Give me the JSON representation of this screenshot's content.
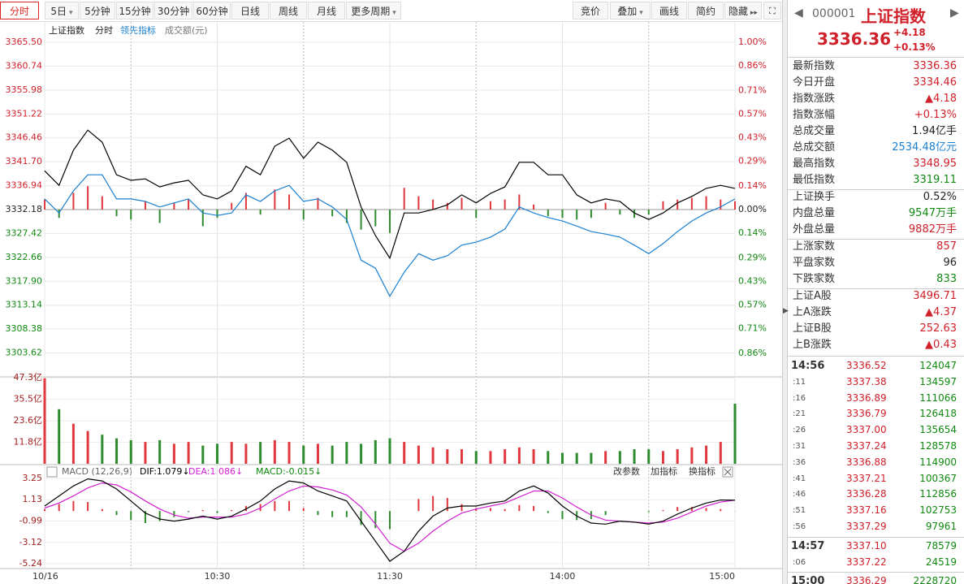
{
  "toolbar": {
    "left": [
      "分时",
      "5日",
      "5分钟",
      "15分钟",
      "30分钟",
      "60分钟",
      "日线",
      "周线",
      "月线",
      "更多周期"
    ],
    "right": [
      "竞价",
      "叠加",
      "画线",
      "简约",
      "隐藏"
    ]
  },
  "chart_data": [
    {
      "type": "line",
      "title": "上证指数",
      "subtitle": "分时",
      "volume_label": "成交额(元)",
      "x": [
        0,
        5,
        10,
        15,
        20,
        25,
        30,
        35,
        40,
        45,
        50,
        55,
        60,
        65,
        70,
        75,
        80,
        85,
        90,
        95,
        100,
        105,
        110,
        115,
        120,
        125,
        130,
        135,
        140,
        145,
        150,
        155,
        160,
        165,
        170,
        175,
        180,
        185,
        190,
        195,
        200,
        205,
        210,
        215,
        220,
        225,
        230,
        235,
        240
      ],
      "xlim": [
        0,
        240
      ],
      "xticks": [
        {
          "value": 0,
          "label": "10/16"
        },
        {
          "value": 60,
          "label": "10:30"
        },
        {
          "value": 120,
          "label": "11:30"
        },
        {
          "value": 180,
          "label": "14:00"
        },
        {
          "value": 240,
          "label": "15:00"
        }
      ],
      "xgrid": [
        30,
        90,
        150,
        210
      ],
      "series": [
        {
          "name": "上证指数",
          "color": "#000000",
          "values": [
            3339.9,
            3337.0,
            3344.0,
            3348.0,
            3345.6,
            3339.1,
            3338.0,
            3338.3,
            3336.7,
            3337.5,
            3338.0,
            3335.1,
            3334.3,
            3335.9,
            3340.8,
            3339.1,
            3344.8,
            3346.4,
            3342.4,
            3345.6,
            3344.0,
            3341.6,
            3332.7,
            3327.0,
            3322.5,
            3331.5,
            3331.5,
            3332.2,
            3333.1,
            3335.1,
            3333.5,
            3335.4,
            3336.7,
            3341.6,
            3341.6,
            3339.1,
            3339.1,
            3335.1,
            3333.5,
            3334.3,
            3333.8,
            3331.5,
            3330.2,
            3331.5,
            3333.5,
            3334.8,
            3336.4,
            3337.0,
            3336.4
          ]
        },
        {
          "name": "领先指标",
          "color": "#1a7fd0",
          "values": [
            3334.3,
            3331.5,
            3335.9,
            3339.1,
            3339.1,
            3334.3,
            3334.3,
            3333.8,
            3332.7,
            3333.5,
            3334.3,
            3331.5,
            3331.0,
            3331.5,
            3335.1,
            3333.8,
            3335.9,
            3337.0,
            3333.8,
            3334.3,
            3332.7,
            3330.2,
            3322.1,
            3320.5,
            3314.9,
            3319.7,
            3323.4,
            3322.1,
            3323.0,
            3325.1,
            3325.7,
            3326.7,
            3328.3,
            3332.7,
            3331.5,
            3330.6,
            3329.9,
            3328.9,
            3327.8,
            3327.3,
            3326.7,
            3325.1,
            3323.4,
            3325.4,
            3327.8,
            3329.9,
            3331.5,
            3332.7,
            3334.3
          ]
        }
      ],
      "bars": {
        "axis": "y2",
        "values": [
          0.06,
          -0.05,
          0.1,
          0.14,
          0.08,
          -0.04,
          -0.06,
          0.05,
          -0.08,
          0.04,
          0.06,
          -0.1,
          -0.05,
          0.04,
          0.1,
          -0.03,
          0.12,
          0.09,
          -0.06,
          0.07,
          -0.04,
          -0.08,
          -0.12,
          -0.1,
          -0.14,
          0.13,
          0.08,
          0.06,
          0.04,
          0.07,
          -0.05,
          0.05,
          0.06,
          0.09,
          0.03,
          -0.04,
          -0.05,
          -0.06,
          -0.05,
          0.04,
          -0.03,
          -0.05,
          -0.03,
          0.05,
          0.06,
          0.07,
          0.08,
          0.06,
          0.05
        ]
      },
      "up_color": "#e0383e",
      "down_color": "#2e8b2e",
      "ylim": [
        3298.86,
        3365.5
      ],
      "yticks": [
        {
          "value": 3365.5,
          "label": "3365.50"
        },
        {
          "value": 3360.74,
          "label": "3360.74"
        },
        {
          "value": 3355.98,
          "label": "3355.98"
        },
        {
          "value": 3351.22,
          "label": "3351.22"
        },
        {
          "value": 3346.46,
          "label": "3346.46"
        },
        {
          "value": 3341.7,
          "label": "3341.70"
        },
        {
          "value": 3336.94,
          "label": "3336.94"
        },
        {
          "value": 3332.18,
          "label": "3332.18"
        },
        {
          "value": 3327.42,
          "label": "3327.42"
        },
        {
          "value": 3322.66,
          "label": "3322.66"
        },
        {
          "value": 3317.9,
          "label": "3317.90"
        },
        {
          "value": 3313.14,
          "label": "3313.14"
        },
        {
          "value": 3308.38,
          "label": "3308.38"
        },
        {
          "value": 3303.62,
          "label": "3303.62"
        }
      ],
      "y2lim": [
        -1.0,
        1.0
      ],
      "y2ticks": [
        {
          "value": 1.0,
          "label": "1.00%"
        },
        {
          "value": 0.86,
          "label": "0.86%"
        },
        {
          "value": 0.71,
          "label": "0.71%"
        },
        {
          "value": 0.57,
          "label": "0.57%"
        },
        {
          "value": 0.43,
          "label": "0.43%"
        },
        {
          "value": 0.29,
          "label": "0.29%"
        },
        {
          "value": 0.14,
          "label": "0.14%"
        },
        {
          "value": 0,
          "label": "0.00%"
        },
        {
          "value": -0.14,
          "label": "0.14%"
        },
        {
          "value": -0.29,
          "label": "0.29%"
        },
        {
          "value": -0.43,
          "label": "0.43%"
        },
        {
          "value": -0.57,
          "label": "0.57%"
        },
        {
          "value": -0.71,
          "label": "0.71%"
        },
        {
          "value": -0.86,
          "label": "0.86%"
        }
      ],
      "grid": true
    },
    {
      "type": "bar",
      "x": [
        0,
        5,
        10,
        15,
        20,
        25,
        30,
        35,
        40,
        45,
        50,
        55,
        60,
        65,
        70,
        75,
        80,
        85,
        90,
        95,
        100,
        105,
        110,
        115,
        120,
        125,
        130,
        135,
        140,
        145,
        150,
        155,
        160,
        165,
        170,
        175,
        180,
        185,
        190,
        195,
        200,
        205,
        210,
        215,
        220,
        225,
        230,
        235,
        240
      ],
      "xlim": [
        0,
        240
      ],
      "values": [
        47,
        30,
        22,
        18,
        16,
        14,
        13,
        12,
        13,
        11,
        12,
        10,
        11,
        12,
        11,
        12,
        13,
        12,
        10,
        11,
        10,
        12,
        11,
        13,
        14,
        12,
        10,
        9,
        8,
        8,
        7,
        7,
        8,
        9,
        8,
        7,
        6,
        6,
        6,
        7,
        7,
        8,
        8,
        7,
        8,
        9,
        10,
        12,
        33
      ],
      "colors": [
        "#e0383e",
        "#2e8b2e",
        "#e0383e",
        "#e0383e",
        "#2e8b2e",
        "#2e8b2e",
        "#2e8b2e",
        "#e0383e",
        "#2e8b2e",
        "#e0383e",
        "#e0383e",
        "#2e8b2e",
        "#2e8b2e",
        "#e0383e",
        "#e0383e",
        "#2e8b2e",
        "#e0383e",
        "#e0383e",
        "#2e8b2e",
        "#e0383e",
        "#2e8b2e",
        "#2e8b2e",
        "#2e8b2e",
        "#2e8b2e",
        "#2e8b2e",
        "#e0383e",
        "#e0383e",
        "#e0383e",
        "#e0383e",
        "#e0383e",
        "#2e8b2e",
        "#e0383e",
        "#e0383e",
        "#e0383e",
        "#e0383e",
        "#2e8b2e",
        "#2e8b2e",
        "#2e8b2e",
        "#2e8b2e",
        "#e0383e",
        "#2e8b2e",
        "#2e8b2e",
        "#2e8b2e",
        "#e0383e",
        "#e0383e",
        "#e0383e",
        "#e0383e",
        "#e0383e",
        "#2e8b2e"
      ],
      "ylim": [
        0,
        47.3
      ],
      "yticks": [
        {
          "value": 47.3,
          "label": "47.3亿"
        },
        {
          "value": 35.5,
          "label": "35.5亿"
        },
        {
          "value": 23.6,
          "label": "23.6亿"
        },
        {
          "value": 11.8,
          "label": "11.8亿"
        }
      ],
      "grid": true
    },
    {
      "type": "macd",
      "title": "MACD (12,26,9)",
      "dif_label": "DIF:1.079↓",
      "dea_label": "DEA:1.086↓",
      "macd_label": "MACD:-0.015↓",
      "buttons": [
        "改参数",
        "加指标",
        "换指标"
      ],
      "x": [
        0,
        5,
        10,
        15,
        20,
        25,
        30,
        35,
        40,
        45,
        50,
        55,
        60,
        65,
        70,
        75,
        80,
        85,
        90,
        95,
        100,
        105,
        110,
        115,
        120,
        125,
        130,
        135,
        140,
        145,
        150,
        155,
        160,
        165,
        170,
        175,
        180,
        185,
        190,
        195,
        200,
        205,
        210,
        215,
        220,
        225,
        230,
        235,
        240
      ],
      "xlim": [
        0,
        240
      ],
      "series": [
        {
          "name": "DIF",
          "color": "#000000",
          "values": [
            0.5,
            1.5,
            2.5,
            3.2,
            3.0,
            2.2,
            1.0,
            -0.2,
            -0.8,
            -1.0,
            -0.8,
            -0.5,
            -0.8,
            -0.5,
            0.2,
            1.0,
            2.2,
            3.0,
            2.8,
            2.0,
            1.5,
            1.0,
            -1.0,
            -3.0,
            -5.0,
            -4.0,
            -2.0,
            -0.5,
            0.3,
            0.5,
            0.5,
            0.8,
            1.0,
            2.0,
            2.5,
            1.8,
            0.5,
            -0.5,
            -1.2,
            -1.3,
            -1.0,
            -1.1,
            -1.3,
            -1.0,
            -0.3,
            0.3,
            0.8,
            1.1,
            1.079
          ]
        },
        {
          "name": "DEA",
          "color": "#d020d0",
          "values": [
            0.3,
            0.8,
            1.5,
            2.3,
            2.8,
            2.6,
            1.9,
            1.0,
            0.2,
            -0.4,
            -0.7,
            -0.6,
            -0.6,
            -0.6,
            -0.3,
            0.3,
            1.2,
            2.0,
            2.5,
            2.4,
            2.1,
            1.6,
            0.4,
            -1.3,
            -3.2,
            -4.0,
            -3.2,
            -2.0,
            -1.0,
            -0.2,
            0.2,
            0.5,
            0.8,
            1.4,
            2.0,
            2.0,
            1.3,
            0.4,
            -0.4,
            -0.9,
            -1.0,
            -1.1,
            -1.2,
            -1.1,
            -0.7,
            -0.1,
            0.5,
            0.9,
            1.086
          ]
        }
      ],
      "values": [
        0.2,
        0.7,
        1.0,
        0.9,
        0.2,
        -0.4,
        -0.9,
        -1.2,
        -1.0,
        -0.6,
        -0.1,
        0.1,
        -0.2,
        0.1,
        0.5,
        0.7,
        1.0,
        1.0,
        0.3,
        -0.4,
        -0.6,
        -0.6,
        -1.4,
        -1.7,
        -1.8,
        0,
        1.2,
        1.5,
        1.3,
        0.7,
        0.3,
        0.3,
        0.2,
        0.6,
        0.5,
        -0.2,
        -0.8,
        -0.9,
        -0.8,
        -0.4,
        0,
        0,
        -0.1,
        0.1,
        0.4,
        0.4,
        0.3,
        0.2,
        -0.015
      ],
      "up_color": "#e0383e",
      "down_color": "#2e8b2e",
      "ylim": [
        -5.24,
        3.25
      ],
      "yticks": [
        3.25,
        1.13,
        -0.99,
        -3.12,
        -5.24
      ],
      "grid": true
    }
  ],
  "quote": {
    "code": "000001",
    "name": "上证指数",
    "price": "3336.36",
    "change": "+4.18",
    "change_pct": "+0.13%",
    "groups": [
      [
        {
          "label": "最新指数",
          "value": "3336.36",
          "color": "#d0202a"
        },
        {
          "label": "今日开盘",
          "value": "3334.46",
          "color": "#d0202a"
        },
        {
          "label": "指数涨跌",
          "value": "▲4.18",
          "color": "#d0202a"
        },
        {
          "label": "指数涨幅",
          "value": "+0.13%",
          "color": "#d0202a"
        },
        {
          "label": "总成交量",
          "value": "1.94亿手",
          "color": "#222222"
        },
        {
          "label": "总成交额",
          "value": "2534.48亿元",
          "color": "#1a7fd0"
        },
        {
          "label": "最高指数",
          "value": "3348.95",
          "color": "#d0202a"
        },
        {
          "label": "最低指数",
          "value": "3319.11",
          "color": "#118811"
        }
      ],
      [
        {
          "label": "上证换手",
          "value": "0.52%",
          "color": "#222222"
        },
        {
          "label": "内盘总量",
          "value": "9547万手",
          "color": "#118811"
        },
        {
          "label": "外盘总量",
          "value": "9882万手",
          "color": "#d0202a"
        }
      ],
      [
        {
          "label": "上涨家数",
          "value": "857",
          "color": "#d0202a"
        },
        {
          "label": "平盘家数",
          "value": "96",
          "color": "#222222"
        },
        {
          "label": "下跌家数",
          "value": "833",
          "color": "#118811"
        }
      ],
      [
        {
          "label": "上证A股",
          "value": "3496.71",
          "color": "#d0202a"
        },
        {
          "label": "上A涨跌",
          "value": "▲4.37",
          "color": "#d0202a"
        },
        {
          "label": "上证B股",
          "value": "252.63",
          "color": "#d0202a"
        },
        {
          "label": "上B涨跌",
          "value": "▲0.43",
          "color": "#d0202a"
        }
      ]
    ],
    "trades": [
      [
        [
          "14:56",
          "3336.52",
          "124047"
        ],
        [
          ":11",
          "3337.38",
          "134597"
        ],
        [
          ":16",
          "3336.89",
          "111066"
        ],
        [
          ":21",
          "3336.79",
          "126418"
        ],
        [
          ":26",
          "3337.00",
          "135654"
        ],
        [
          ":31",
          "3337.24",
          "128578"
        ],
        [
          ":36",
          "3336.88",
          "114900"
        ],
        [
          ":41",
          "3337.21",
          "100367"
        ],
        [
          ":46",
          "3336.28",
          "112856"
        ],
        [
          ":51",
          "3337.16",
          "102753"
        ],
        [
          ":56",
          "3337.29",
          "97961"
        ]
      ],
      [
        [
          "14:57",
          "3337.10",
          "78579"
        ],
        [
          ":06",
          "3337.22",
          "24519"
        ]
      ],
      [
        [
          "15:00",
          "3336.29",
          "2228720"
        ]
      ]
    ]
  }
}
